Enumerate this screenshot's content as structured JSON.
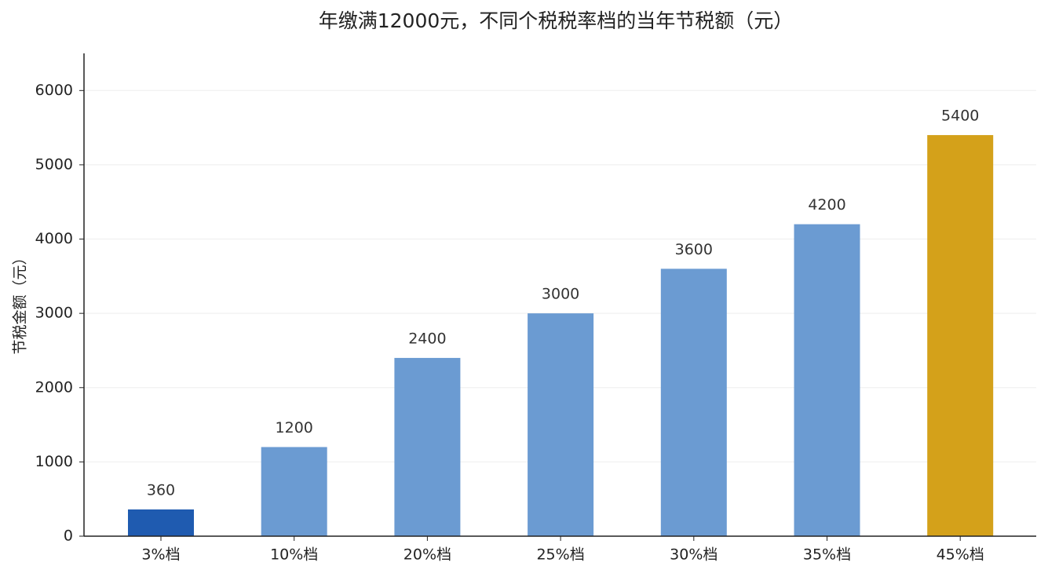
{
  "chart_data": {
    "type": "bar",
    "title": "年缴满12000元，不同个税税率档的当年节税额（元）",
    "y_label": "节税金额（元）",
    "categories": [
      "3%档",
      "10%档",
      "20%档",
      "25%档",
      "30%档",
      "35%档",
      "45%档"
    ],
    "values": [
      360,
      1200,
      2400,
      3000,
      3600,
      4200,
      5400
    ],
    "colors": [
      "#1f5bb0",
      "#6b9bd2",
      "#6b9bd2",
      "#6b9bd2",
      "#6b9bd2",
      "#6b9bd2",
      "#d4a11a"
    ],
    "ylim": [
      0,
      6500
    ],
    "yticks": [
      0,
      1000,
      2000,
      3000,
      4000,
      5000,
      6000
    ],
    "grid": true
  }
}
